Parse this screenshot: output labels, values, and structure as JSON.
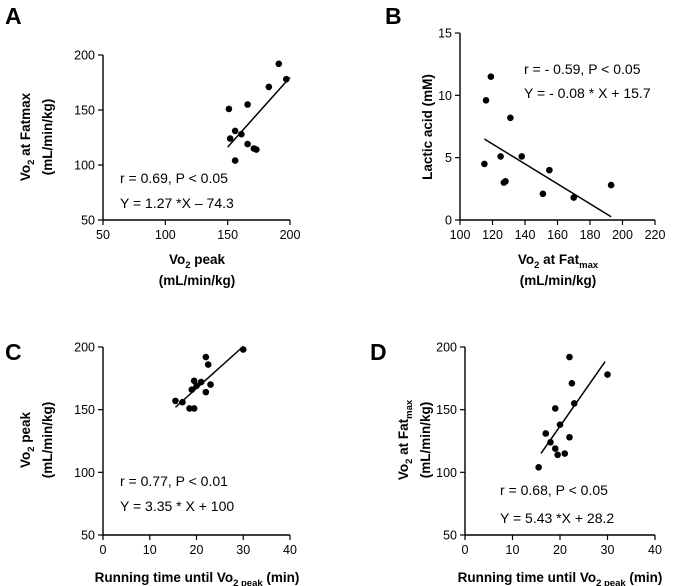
{
  "chart_data": [
    {
      "panel": "A",
      "type": "scatter",
      "xlabel": "Vo2 peak",
      "xlabel_parts": {
        "main": "Vo",
        "sub": "2",
        "rest": " peak"
      },
      "xlabel_line2": "(mL/min/kg)",
      "ylabel_parts": {
        "main": "Vo",
        "sub": "2",
        "rest": " at Fatmax"
      },
      "ylabel_line2": "(mL/min/kg)",
      "xlim": [
        50,
        200
      ],
      "ylim": [
        50,
        200
      ],
      "xticks": [
        50,
        100,
        150,
        200
      ],
      "yticks": [
        50,
        100,
        150,
        200
      ],
      "points": [
        [
          151,
          151
        ],
        [
          152,
          124
        ],
        [
          156,
          131
        ],
        [
          156,
          104
        ],
        [
          161,
          128
        ],
        [
          166,
          119
        ],
        [
          166,
          155
        ],
        [
          171,
          115
        ],
        [
          173,
          114
        ],
        [
          183,
          171
        ],
        [
          191,
          192
        ],
        [
          197,
          178
        ]
      ],
      "fit": {
        "slope": 1.27,
        "intercept": -74.3,
        "x_range": [
          150,
          200
        ]
      },
      "annotations": [
        "r = 0.69, P < 0.05",
        "Y  =  1.27 *X – 74.3"
      ]
    },
    {
      "panel": "B",
      "type": "scatter",
      "xlabel": "Vo2 at Fatmax",
      "xlabel_parts": {
        "main": "Vo",
        "sub": "2",
        "rest": " at Fat",
        "sub2": "max"
      },
      "xlabel_line2": "(mL/min/kg)",
      "ylabel_parts": {
        "main": "Lactic acid (mM)"
      },
      "xlim": [
        100,
        220
      ],
      "ylim": [
        0,
        15
      ],
      "xticks": [
        100,
        120,
        140,
        160,
        180,
        200,
        220
      ],
      "yticks": [
        0,
        5,
        10,
        15
      ],
      "points": [
        [
          115,
          4.5
        ],
        [
          116,
          9.6
        ],
        [
          119,
          11.5
        ],
        [
          125,
          5.1
        ],
        [
          127,
          3.0
        ],
        [
          128,
          3.1
        ],
        [
          131,
          8.2
        ],
        [
          138,
          5.1
        ],
        [
          151,
          2.1
        ],
        [
          155,
          4.0
        ],
        [
          170,
          1.8
        ],
        [
          193,
          2.8
        ]
      ],
      "fit": {
        "slope": -0.08,
        "intercept": 15.7,
        "x_range": [
          115,
          193
        ]
      },
      "annotations": [
        "r = - 0.59, P < 0.05",
        "Y  =  - 0.08 * X + 15.7"
      ]
    },
    {
      "panel": "C",
      "type": "scatter",
      "xlabel": "Running time until Vo2 peak (min)",
      "xlabel_parts": {
        "main": "Running time until Vo",
        "sub": "2 peak",
        "rest": " (min)"
      },
      "ylabel_parts": {
        "main": "Vo",
        "sub": "2",
        "rest": " peak"
      },
      "ylabel_line2": "(mL/min/kg)",
      "xlim": [
        0,
        40
      ],
      "ylim": [
        50,
        200
      ],
      "xticks": [
        0,
        10,
        20,
        30,
        40
      ],
      "yticks": [
        50,
        100,
        150,
        200
      ],
      "points": [
        [
          15.5,
          157
        ],
        [
          17,
          156
        ],
        [
          18.5,
          151
        ],
        [
          19,
          166
        ],
        [
          19.5,
          151
        ],
        [
          19.5,
          173
        ],
        [
          20,
          169
        ],
        [
          21,
          172
        ],
        [
          22,
          192
        ],
        [
          22,
          164
        ],
        [
          22.5,
          186
        ],
        [
          23,
          170
        ],
        [
          30,
          198
        ]
      ],
      "fit": {
        "slope": 3.35,
        "intercept": 100,
        "x_range": [
          15.5,
          30
        ]
      },
      "annotations": [
        "r = 0.77, P < 0.01",
        "Y  =  3.35 * X + 100"
      ]
    },
    {
      "panel": "D",
      "type": "scatter",
      "xlabel": "Running time until Vo2 peak (min)",
      "xlabel_parts": {
        "main": "Running time until Vo",
        "sub": "2 peak",
        "rest": " (min)"
      },
      "ylabel_parts": {
        "main": "Vo",
        "sub": "2",
        "rest": " at Fat",
        "sub2": "max"
      },
      "ylabel_line2": "(mL/min/kg)",
      "xlim": [
        0,
        40
      ],
      "ylim": [
        50,
        200
      ],
      "xticks": [
        0,
        10,
        20,
        30,
        40
      ],
      "yticks": [
        50,
        100,
        150,
        200
      ],
      "points": [
        [
          15.5,
          104
        ],
        [
          17,
          131
        ],
        [
          18,
          124
        ],
        [
          19,
          119
        ],
        [
          19,
          151
        ],
        [
          19.5,
          114
        ],
        [
          20,
          138
        ],
        [
          21,
          115
        ],
        [
          22,
          192
        ],
        [
          22,
          128
        ],
        [
          22.5,
          171
        ],
        [
          23,
          155
        ],
        [
          30,
          178
        ]
      ],
      "fit": {
        "slope": 5.43,
        "intercept": 28.2,
        "x_range": [
          16,
          29.5
        ]
      },
      "annotations": [
        "r = 0.68, P < 0.05",
        "Y  =  5.43 *X + 28.2"
      ]
    }
  ]
}
